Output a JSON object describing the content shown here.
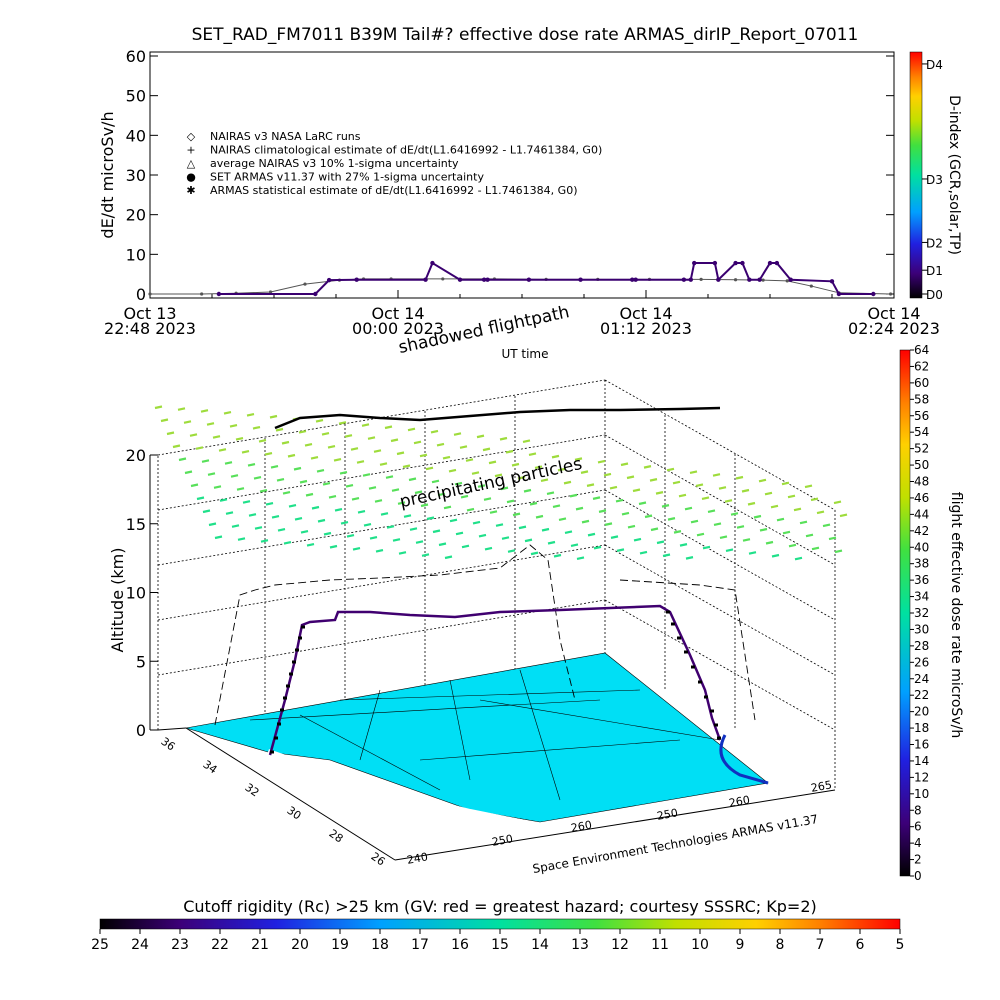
{
  "chart_data": [
    {
      "type": "line",
      "title": "SET_RAD_FM7011  B39M Tail#? effective dose rate ARMAS_dirIP_Report_07011",
      "ylabel": "dE/dt microSv/h",
      "xlabel": "UT time",
      "ylim": [
        0,
        60
      ],
      "y_ticks": [
        "0",
        "10",
        "20",
        "30",
        "40",
        "50",
        "60"
      ],
      "x_ticks": [
        {
          "line1": "Oct 13",
          "line2": "22:48 2023"
        },
        {
          "line1": "Oct 14",
          "line2": "00:00 2023"
        },
        {
          "line1": "Oct 14",
          "line2": "01:12 2023"
        },
        {
          "line1": "Oct 14",
          "line2": "02:24 2023"
        }
      ],
      "x_minutes_range": [
        0,
        216
      ],
      "right_axis": {
        "label": "D-index (GCR,solar,TP)",
        "ticks": [
          {
            "label": "D0",
            "value": 0
          },
          {
            "label": "D1",
            "value": 6
          },
          {
            "label": "D2",
            "value": 13
          },
          {
            "label": "D3",
            "value": 29
          },
          {
            "label": "D4",
            "value": 58
          }
        ]
      },
      "legend": [
        {
          "symbol": "diamond",
          "label": "NAIRAS v3 NASA LaRC runs"
        },
        {
          "symbol": "plus",
          "label": "NAIRAS climatological estimate of dE/dt(L1.6416992 - L1.7461384, G0)"
        },
        {
          "symbol": "triangle",
          "label": "average NAIRAS v3 10% 1-sigma uncertainty"
        },
        {
          "symbol": "dot",
          "label": "SET ARMAS v11.37 with 27% 1-sigma uncertainty"
        },
        {
          "symbol": "star",
          "label": "ARMAS statistical estimate of dE/dt(L1.6416992 - L1.7461384, G0)"
        }
      ],
      "series": [
        {
          "name": "NAIRAS v3 NASA LaRC runs",
          "x": [
            0,
            15,
            25,
            35,
            45,
            55,
            62,
            70,
            85,
            100,
            115,
            130,
            145,
            160,
            170,
            178,
            185,
            192,
            200,
            215
          ],
          "values": [
            0,
            0,
            0.2,
            0.5,
            2.5,
            3.5,
            3.8,
            3.8,
            3.8,
            3.8,
            3.7,
            3.7,
            3.7,
            3.7,
            3.6,
            3.5,
            3.3,
            2,
            0.3,
            0
          ]
        },
        {
          "name": "SET ARMAS v11.37 with 27% 1-sigma uncertainty",
          "x": [
            20,
            48,
            52,
            60,
            80,
            82,
            90,
            97,
            98,
            110,
            125,
            140,
            141,
            155,
            157,
            158,
            164,
            165,
            170,
            172,
            174,
            177,
            180,
            182,
            186,
            198,
            200,
            210
          ],
          "values": [
            0,
            0,
            3.5,
            3.6,
            3.6,
            7.8,
            3.6,
            3.6,
            3.6,
            3.6,
            3.6,
            3.6,
            3.6,
            3.6,
            3.6,
            7.8,
            7.8,
            3.6,
            7.8,
            7.8,
            3.6,
            3.6,
            7.8,
            7.8,
            3.6,
            3.2,
            0,
            0
          ]
        }
      ]
    },
    {
      "type": "scatter",
      "annotations": [
        "shadowed flightpath",
        "precipitating particles"
      ],
      "zlabel": "Altitude (km)",
      "z_ticks": [
        "0",
        "5",
        "10",
        "15",
        "20"
      ],
      "lat_ticks": [
        "36",
        "34",
        "32",
        "30",
        "28",
        "26"
      ],
      "lon_ticks": [
        "240",
        "250",
        "260",
        "250",
        "260",
        "265"
      ],
      "credit": "Space Environment Technologies ARMAS v11.37",
      "colorbar": {
        "label": "flight effective dose rate microSv/h",
        "ticks": [
          "0",
          "2",
          "4",
          "6",
          "8",
          "10",
          "12",
          "14",
          "16",
          "18",
          "20",
          "22",
          "24",
          "26",
          "28",
          "30",
          "32",
          "34",
          "36",
          "38",
          "40",
          "42",
          "44",
          "46",
          "48",
          "50",
          "52",
          "54",
          "56",
          "58",
          "60",
          "62",
          "64"
        ]
      },
      "flight_altitude_km": [
        0,
        1,
        3,
        5,
        7.5,
        8,
        8.6,
        8.6,
        8.5,
        8.4,
        8.5,
        8.6,
        8.7,
        8.8,
        8.9,
        7,
        4,
        1,
        0
      ]
    },
    {
      "type": "heatmap",
      "title": "Cutoff rigidity (Rc) >25 km (GV: red = greatest hazard; courtesy SSSRC; Kp=2)",
      "scale_ticks": [
        "25",
        "24",
        "23",
        "22",
        "21",
        "20",
        "19",
        "18",
        "17",
        "16",
        "15",
        "14",
        "13",
        "12",
        "11",
        "10",
        "9",
        "8",
        "7",
        "6",
        "5"
      ]
    }
  ]
}
